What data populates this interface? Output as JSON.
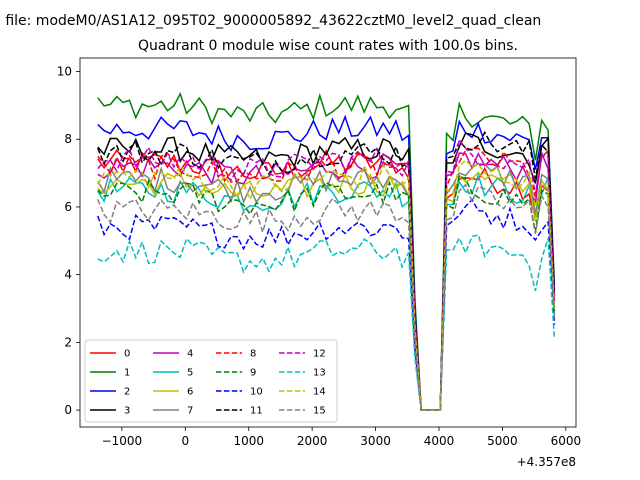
{
  "figure": {
    "suptitle": "n file: modeM0/AS1A12_095T02_9000005892_43622cztM0_level2_quad_clean",
    "title": "Quadrant 0 module wise count rates with 100.0s bins.",
    "x_offset_label": "+4.357e8"
  },
  "chart_data": {
    "type": "line",
    "title": "Quadrant 0 module wise count rates with 100.0s bins.",
    "xlabel": "",
    "ylabel": "",
    "x_offset": 435700000,
    "xlim": [
      -1660,
      6160
    ],
    "ylim": [
      -0.5,
      10.4
    ],
    "xticks": [
      -1000,
      0,
      1000,
      2000,
      3000,
      4000,
      5000,
      6000
    ],
    "xtick_labels": [
      "−1000",
      "0",
      "1000",
      "2000",
      "3000",
      "4000",
      "5000",
      "6000"
    ],
    "yticks": [
      0,
      2,
      4,
      6,
      8,
      10
    ],
    "ytick_labels": [
      "0",
      "2",
      "4",
      "6",
      "8",
      "10"
    ],
    "grid": false,
    "legend_position": "lower-left",
    "legend_columns": 4,
    "gap_note": "count rate drops to 0 between about 3700 and 4100",
    "series": [
      {
        "name": "0",
        "color": "#ff0000",
        "dash": false,
        "level_main": 7.3,
        "level_after": 7.0
      },
      {
        "name": "1",
        "color": "#008000",
        "dash": false,
        "level_main": 9.0,
        "level_after": 8.8
      },
      {
        "name": "2",
        "color": "#0000ff",
        "dash": false,
        "level_main": 8.3,
        "level_after": 8.4
      },
      {
        "name": "3",
        "color": "#000000",
        "dash": false,
        "level_main": 7.7,
        "level_after": 8.0
      },
      {
        "name": "4",
        "color": "#bf00bf",
        "dash": false,
        "level_main": 7.2,
        "level_after": 7.5
      },
      {
        "name": "5",
        "color": "#00bfbf",
        "dash": false,
        "level_main": 6.5,
        "level_after": 6.8
      },
      {
        "name": "6",
        "color": "#bfbf00",
        "dash": false,
        "level_main": 6.7,
        "level_after": 7.0
      },
      {
        "name": "7",
        "color": "#808080",
        "dash": false,
        "level_main": 6.8,
        "level_after": 7.2
      },
      {
        "name": "8",
        "color": "#ff0000",
        "dash": true,
        "level_main": 7.2,
        "level_after": 7.6
      },
      {
        "name": "9",
        "color": "#008000",
        "dash": true,
        "level_main": 6.4,
        "level_after": 6.6
      },
      {
        "name": "10",
        "color": "#0000ff",
        "dash": true,
        "level_main": 5.4,
        "level_after": 6.0
      },
      {
        "name": "11",
        "color": "#000000",
        "dash": true,
        "level_main": 7.6,
        "level_after": 8.1
      },
      {
        "name": "12",
        "color": "#bf00bf",
        "dash": true,
        "level_main": 7.4,
        "level_after": 7.7
      },
      {
        "name": "13",
        "color": "#00bfbf",
        "dash": true,
        "level_main": 4.7,
        "level_after": 5.0
      },
      {
        "name": "14",
        "color": "#bfbf00",
        "dash": true,
        "level_main": 6.9,
        "level_after": 7.2
      },
      {
        "name": "15",
        "color": "#808080",
        "dash": true,
        "level_main": 5.9,
        "level_after": 6.4
      }
    ]
  }
}
